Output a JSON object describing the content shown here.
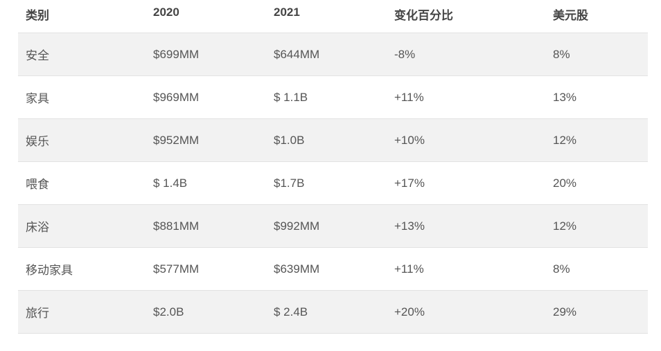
{
  "table": {
    "headers": [
      "类别",
      "2020",
      "2021",
      "变化百分比",
      "美元股"
    ],
    "rows": [
      [
        "安全",
        "$699MM",
        "$644MM",
        "-8%",
        "8%"
      ],
      [
        "家具",
        "$969MM",
        "$ 1.1B",
        "+11%",
        "13%"
      ],
      [
        "娱乐",
        "$952MM",
        "$1.0B",
        "+10%",
        "12%"
      ],
      [
        "喂食",
        "$ 1.4B",
        "$1.7B",
        "+17%",
        "20%"
      ],
      [
        "床浴",
        "$881MM",
        "$992MM",
        "+13%",
        "12%"
      ],
      [
        "移动家具",
        "$577MM",
        "$639MM",
        "+11%",
        "8%"
      ],
      [
        "旅行",
        "$2.0B",
        "$ 2.4B",
        "+20%",
        "29%"
      ]
    ]
  }
}
